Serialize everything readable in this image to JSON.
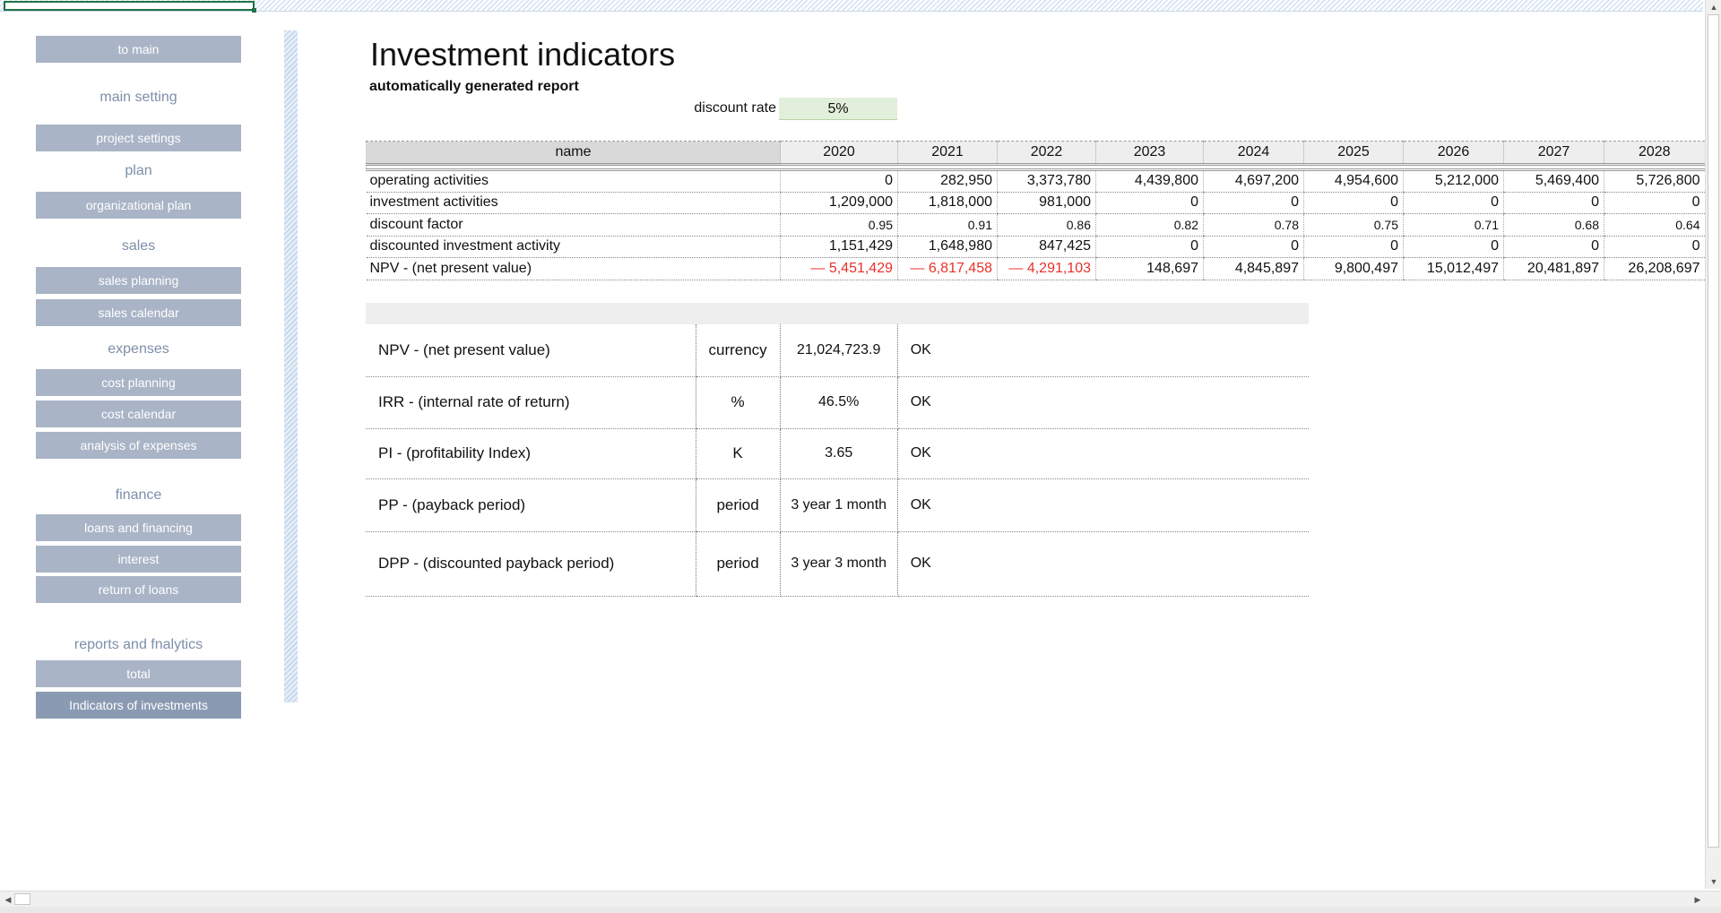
{
  "sidebar": {
    "to_main": "to main",
    "main_setting": "main setting",
    "project_settings": "project settings",
    "plan": "plan",
    "organizational_plan": "organizational plan",
    "sales": "sales",
    "sales_planning": "sales planning",
    "sales_calendar": "sales calendar",
    "expenses": "expenses",
    "cost_planning": "cost planning",
    "cost_calendar": "cost calendar",
    "analysis_of_expenses": "analysis of expenses",
    "finance": "finance",
    "loans_and_financing": "loans and financing",
    "interest": "interest",
    "return_of_loans": "return of loans",
    "reports": "reports and fnalytics",
    "total": "total",
    "indicators": "Indicators of investments"
  },
  "main": {
    "title": "Investment indicators",
    "subtitle": "automatically generated report",
    "discount_rate_label": "discount rate",
    "discount_rate_value": "5%"
  },
  "table": {
    "name_header": "name",
    "years": [
      "2020",
      "2021",
      "2022",
      "2023",
      "2024",
      "2025",
      "2026",
      "2027",
      "2028"
    ],
    "rows": [
      {
        "label": "operating activities",
        "values": [
          "0",
          "282,950",
          "3,373,780",
          "4,439,800",
          "4,697,200",
          "4,954,600",
          "5,212,000",
          "5,469,400",
          "5,726,800"
        ]
      },
      {
        "label": "investment activities",
        "values": [
          "1,209,000",
          "1,818,000",
          "981,000",
          "0",
          "0",
          "0",
          "0",
          "0",
          "0"
        ]
      },
      {
        "label": "discount factor",
        "values": [
          "0.95",
          "0.91",
          "0.86",
          "0.82",
          "0.78",
          "0.75",
          "0.71",
          "0.68",
          "0.64"
        ]
      },
      {
        "label": "discounted investment activity",
        "values": [
          "1,151,429",
          "1,648,980",
          "847,425",
          "0",
          "0",
          "0",
          "0",
          "0",
          "0"
        ]
      },
      {
        "label": "NPV -  (net present value)",
        "values": [
          "— 5,451,429",
          "— 6,817,458",
          "— 4,291,103",
          "148,697",
          "4,845,897",
          "9,800,497",
          "15,012,497",
          "20,481,897",
          "26,208,697"
        ]
      }
    ]
  },
  "summary": [
    {
      "name": "NPV -  (net present value)",
      "unit": "currency",
      "value": "21,024,723.9",
      "status": "OK"
    },
    {
      "name": "IRR - (internal rate of return)",
      "unit": "%",
      "value": "46.5%",
      "status": "OK"
    },
    {
      "name": "PI - (profitability Index)",
      "unit": "K",
      "value": "3.65",
      "status": "OK"
    },
    {
      "name": "PP - (payback period)",
      "unit": "period",
      "value": "3 year 1 month",
      "status": "OK"
    },
    {
      "name": "DPP - (discounted payback period)",
      "unit": "period",
      "value": "3 year 3 month",
      "status": "OK"
    }
  ],
  "colors": {
    "nav_button": "#a9b4c6",
    "nav_active": "#8a9ab3",
    "nav_heading": "#7d8fa9",
    "negative": "#e8312b",
    "discount_rate_bg": "#e2efda"
  },
  "icons": {
    "scroll_up": "triangle-up-icon",
    "scroll_down": "triangle-down-icon",
    "scroll_left": "triangle-left-icon",
    "scroll_right": "triangle-right-icon"
  }
}
